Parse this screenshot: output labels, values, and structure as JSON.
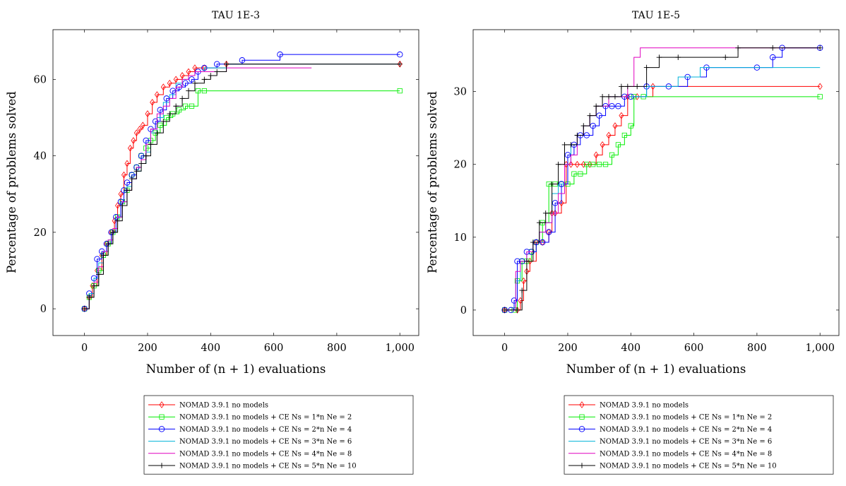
{
  "chart_data": [
    {
      "type": "line",
      "title": "TAU 1E-3",
      "xlabel": "Number of (n + 1) evaluations",
      "ylabel": "Percentage of problems solved",
      "xlim": [
        -100,
        1060
      ],
      "ylim": [
        -7,
        73
      ],
      "xticks": [
        0,
        200,
        400,
        600,
        800,
        1000
      ],
      "xtick_labels": [
        "0",
        "200",
        "400",
        "600",
        "800",
        "1,000"
      ],
      "yticks": [
        0,
        20,
        40,
        60
      ],
      "ytick_labels": [
        "0",
        "20",
        "40",
        "60"
      ],
      "legend_position": "below",
      "series": [
        {
          "name": "NOMAD 3.9.1 no models",
          "color": "#ff0000",
          "marker": "diamond",
          "x": [
            0,
            15,
            25,
            40,
            55,
            70,
            85,
            95,
            105,
            115,
            125,
            135,
            145,
            155,
            165,
            175,
            185,
            200,
            215,
            230,
            250,
            270,
            290,
            310,
            330,
            350,
            380,
            450,
            1000
          ],
          "y": [
            0,
            3,
            6,
            10,
            14,
            17,
            20,
            23,
            27,
            30,
            35,
            38,
            42,
            44,
            46,
            47,
            48,
            51,
            54,
            56,
            58,
            59,
            60,
            61,
            62,
            63,
            63,
            64,
            64
          ]
        },
        {
          "name": "NOMAD 3.9.1 no models + CE Ns = 1*n Ne = 2",
          "color": "#00ee00",
          "marker": "square",
          "x": [
            0,
            15,
            30,
            45,
            60,
            75,
            90,
            105,
            120,
            135,
            150,
            165,
            180,
            195,
            210,
            225,
            240,
            260,
            280,
            300,
            320,
            340,
            360,
            380,
            1000
          ],
          "y": [
            0,
            3,
            6,
            10,
            14,
            17,
            20,
            24,
            28,
            31,
            35,
            37,
            40,
            42,
            44,
            46,
            48,
            50,
            51,
            52,
            53,
            53,
            57,
            57,
            57
          ]
        },
        {
          "name": "NOMAD 3.9.1 no models + CE Ns = 2*n Ne = 4",
          "color": "#0000ff",
          "marker": "circle",
          "x": [
            0,
            15,
            30,
            40,
            55,
            70,
            85,
            100,
            115,
            125,
            135,
            150,
            165,
            180,
            195,
            210,
            225,
            240,
            260,
            280,
            300,
            320,
            340,
            360,
            380,
            420,
            500,
            620,
            1000
          ],
          "y": [
            0,
            4,
            8,
            13,
            15,
            17,
            20,
            24,
            28,
            31,
            33,
            35,
            37,
            40,
            44,
            47,
            49,
            52,
            55,
            57,
            58,
            59,
            60,
            62,
            63,
            64,
            65,
            66.5,
            66.5
          ]
        },
        {
          "name": "NOMAD 3.9.1 no models + CE Ns = 3*n Ne = 6",
          "color": "#00b2d8",
          "marker": "none",
          "x": [
            0,
            15,
            30,
            45,
            60,
            75,
            90,
            105,
            120,
            135,
            150,
            165,
            180,
            195,
            210,
            230,
            250,
            270,
            290,
            310,
            330,
            350,
            380,
            450,
            1000
          ],
          "y": [
            0,
            4,
            8,
            12,
            15,
            18,
            21,
            24,
            28,
            32,
            34,
            36,
            38,
            41,
            46,
            50,
            54,
            56,
            59,
            60,
            61,
            62,
            63,
            64,
            64
          ]
        },
        {
          "name": "NOMAD 3.9.1 no models + CE Ns = 4*n Ne = 8",
          "color": "#e000c0",
          "marker": "none",
          "x": [
            0,
            15,
            30,
            45,
            60,
            75,
            90,
            105,
            120,
            135,
            150,
            165,
            180,
            195,
            210,
            230,
            250,
            270,
            290,
            310,
            330,
            350,
            380,
            450,
            720
          ],
          "y": [
            0,
            3,
            7,
            11,
            15,
            18,
            21,
            24,
            28,
            31,
            34,
            37,
            39,
            43,
            47,
            51,
            53,
            55,
            58,
            60,
            61,
            62,
            62,
            63,
            63
          ]
        },
        {
          "name": "NOMAD 3.9.1 no models + CE Ns = 5*n Ne = 10",
          "color": "#000000",
          "marker": "plus",
          "x": [
            0,
            15,
            30,
            45,
            60,
            75,
            90,
            105,
            120,
            135,
            150,
            165,
            180,
            195,
            210,
            230,
            250,
            270,
            290,
            310,
            330,
            350,
            380,
            400,
            420,
            450,
            1000
          ],
          "y": [
            0,
            3,
            6,
            9,
            14,
            17,
            20,
            23,
            27,
            31,
            34,
            36,
            38,
            40,
            43,
            46,
            49,
            51,
            53,
            55,
            57,
            59,
            60,
            61,
            62,
            64,
            64
          ]
        }
      ]
    },
    {
      "type": "line",
      "title": "TAU 1E-5",
      "xlabel": "Number of (n + 1) evaluations",
      "ylabel": "Percentage of problems solved",
      "xlim": [
        -100,
        1060
      ],
      "ylim": [
        -3.5,
        38.5
      ],
      "xticks": [
        0,
        200,
        400,
        600,
        800,
        1000
      ],
      "xtick_labels": [
        "0",
        "200",
        "400",
        "600",
        "800",
        "1,000"
      ],
      "yticks": [
        0,
        10,
        20,
        30
      ],
      "ytick_labels": [
        "0",
        "10",
        "20",
        "30"
      ],
      "legend_position": "below",
      "series": [
        {
          "name": "NOMAD 3.9.1 no models",
          "color": "#ff0000",
          "marker": "diamond",
          "x": [
            0,
            40,
            50,
            60,
            70,
            80,
            100,
            120,
            140,
            150,
            160,
            180,
            195,
            210,
            230,
            250,
            270,
            290,
            310,
            330,
            350,
            370,
            390,
            420,
            470,
            1000
          ],
          "y": [
            0,
            0,
            1.3,
            4,
            5.3,
            6.7,
            9.3,
            9.3,
            10.7,
            13.3,
            13.3,
            14.7,
            20,
            20,
            20,
            20,
            20,
            21.3,
            22.7,
            24,
            25.3,
            26.7,
            29.3,
            29.3,
            30.7,
            30.7
          ]
        },
        {
          "name": "NOMAD 3.9.1 no models + CE Ns = 1*n Ne = 2",
          "color": "#00ee00",
          "marker": "square",
          "x": [
            0,
            30,
            40,
            55,
            70,
            85,
            100,
            120,
            140,
            160,
            180,
            200,
            220,
            240,
            260,
            280,
            300,
            320,
            340,
            360,
            380,
            400,
            410,
            440,
            1000
          ],
          "y": [
            0,
            0,
            4,
            6.7,
            6.7,
            8,
            9.3,
            12,
            17.3,
            17.3,
            17.3,
            17.3,
            18.7,
            18.7,
            20,
            20,
            20,
            20,
            21.3,
            22.7,
            24,
            25.3,
            29.3,
            29.3,
            29.3
          ]
        },
        {
          "name": "NOMAD 3.9.1 no models + CE Ns = 2*n Ne = 4",
          "color": "#0000ff",
          "marker": "circle",
          "x": [
            0,
            20,
            30,
            40,
            55,
            70,
            85,
            100,
            120,
            140,
            160,
            180,
            200,
            220,
            240,
            260,
            280,
            300,
            320,
            340,
            360,
            380,
            400,
            450,
            520,
            580,
            640,
            800,
            850,
            880,
            1000
          ],
          "y": [
            0,
            0,
            1.3,
            6.7,
            6.7,
            8,
            8,
            9.3,
            9.3,
            10.7,
            14.7,
            17.3,
            21.3,
            22.7,
            24,
            24,
            25.3,
            26.7,
            28,
            28,
            28,
            29.3,
            29.3,
            30.7,
            30.7,
            32,
            33.3,
            33.3,
            34.7,
            36,
            36
          ]
        },
        {
          "name": "NOMAD 3.9.1 no models + CE Ns = 3*n Ne = 6",
          "color": "#00b2d8",
          "marker": "none",
          "x": [
            0,
            25,
            35,
            50,
            70,
            90,
            110,
            130,
            150,
            170,
            190,
            210,
            230,
            250,
            270,
            290,
            310,
            330,
            350,
            370,
            390,
            450,
            550,
            620,
            1000
          ],
          "y": [
            0,
            0,
            4,
            6.7,
            8,
            9.3,
            10.7,
            12,
            16,
            17.3,
            20,
            22.7,
            24,
            25.3,
            26.7,
            28,
            28,
            29.3,
            29.3,
            29.3,
            29.3,
            30.7,
            32,
            33.3,
            33.3
          ]
        },
        {
          "name": "NOMAD 3.9.1 no models + CE Ns = 4*n Ne = 8",
          "color": "#e000c0",
          "marker": "none",
          "x": [
            0,
            25,
            35,
            50,
            70,
            90,
            110,
            130,
            150,
            170,
            190,
            210,
            230,
            250,
            270,
            290,
            310,
            330,
            350,
            370,
            390,
            410,
            430,
            1000
          ],
          "y": [
            0,
            0,
            5.3,
            6.7,
            8,
            9.3,
            10.7,
            12,
            13.3,
            16,
            20,
            21.3,
            24,
            25.3,
            26.7,
            28,
            28,
            29.3,
            29.3,
            29.3,
            30.7,
            34.7,
            36,
            36
          ]
        },
        {
          "name": "NOMAD 3.9.1 no models + CE Ns = 5*n Ne = 10",
          "color": "#000000",
          "marker": "plus",
          "x": [
            0,
            40,
            55,
            70,
            90,
            110,
            130,
            150,
            170,
            190,
            210,
            230,
            250,
            270,
            290,
            310,
            330,
            350,
            370,
            390,
            420,
            450,
            490,
            550,
            700,
            740,
            850,
            1000
          ],
          "y": [
            0,
            0,
            2.7,
            6.7,
            9.3,
            12,
            13.3,
            17.3,
            20,
            22.7,
            22.7,
            24,
            25.3,
            26.7,
            28,
            29.3,
            29.3,
            29.3,
            30.7,
            30.7,
            30.7,
            33.3,
            34.7,
            34.7,
            34.7,
            36,
            36,
            36
          ]
        }
      ]
    }
  ]
}
